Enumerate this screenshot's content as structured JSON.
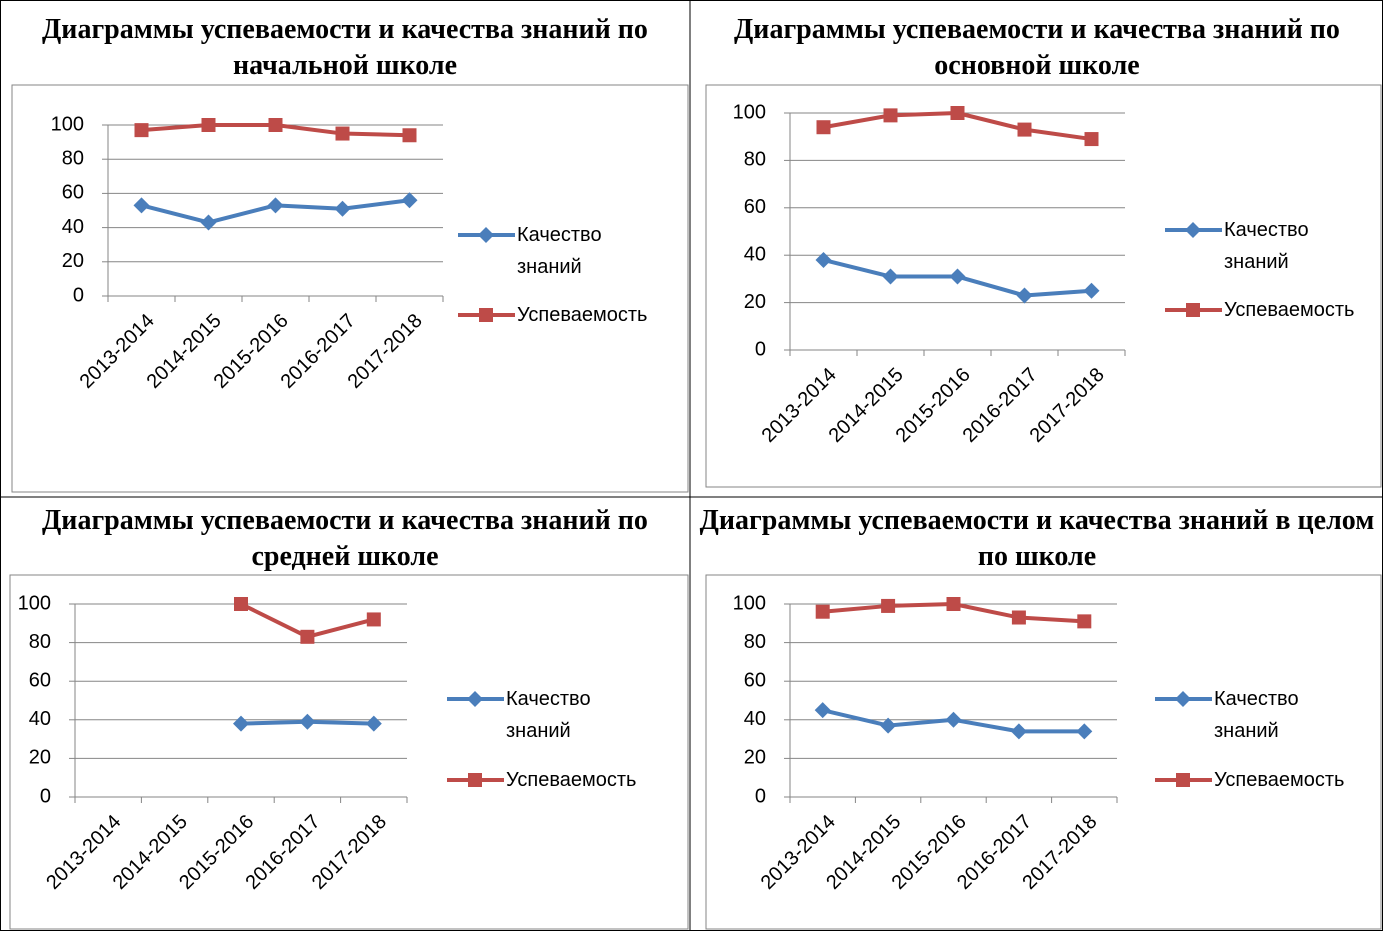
{
  "chart_data": [
    {
      "type": "line",
      "title": "Диаграммы успеваемости и качества знаний по начальной школе",
      "categories": [
        "2013-2014",
        "2014-2015",
        "2015-2016",
        "2016-2017",
        "2017-2018"
      ],
      "series": [
        {
          "name": "Качество знаний",
          "color": "#4a7ebb",
          "marker": "diamond",
          "values": [
            53,
            43,
            53,
            51,
            56
          ]
        },
        {
          "name": "Успеваемость",
          "color": "#be4b48",
          "marker": "square",
          "values": [
            97,
            100,
            100,
            95,
            94
          ]
        }
      ],
      "ylim": [
        0,
        100
      ],
      "yticks": [
        0,
        20,
        40,
        60,
        80,
        100
      ],
      "grid": true,
      "legend": "right"
    },
    {
      "type": "line",
      "title": "Диаграммы успеваемости и качества знаний по основной школе",
      "categories": [
        "2013-2014",
        "2014-2015",
        "2015-2016",
        "2016-2017",
        "2017-2018"
      ],
      "series": [
        {
          "name": "Качество знаний",
          "color": "#4a7ebb",
          "marker": "diamond",
          "values": [
            38,
            31,
            31,
            23,
            25
          ]
        },
        {
          "name": "Успеваемость",
          "color": "#be4b48",
          "marker": "square",
          "values": [
            94,
            99,
            100,
            93,
            89
          ]
        }
      ],
      "ylim": [
        0,
        100
      ],
      "yticks": [
        0,
        20,
        40,
        60,
        80,
        100
      ],
      "grid": true,
      "legend": "right"
    },
    {
      "type": "line",
      "title": "Диаграммы успеваемости и качества знаний по средней школе",
      "categories": [
        "2013-2014",
        "2014-2015",
        "2015-2016",
        "2016-2017",
        "2017-2018"
      ],
      "series": [
        {
          "name": "Качество знаний",
          "color": "#4a7ebb",
          "marker": "diamond",
          "values": [
            null,
            null,
            38,
            39,
            38
          ]
        },
        {
          "name": "Успеваемость",
          "color": "#be4b48",
          "marker": "square",
          "values": [
            null,
            null,
            100,
            83,
            92
          ]
        }
      ],
      "ylim": [
        0,
        100
      ],
      "yticks": [
        0,
        20,
        40,
        60,
        80,
        100
      ],
      "grid": true,
      "legend": "right"
    },
    {
      "type": "line",
      "title": "Диаграммы успеваемости и качества знаний в целом по школе",
      "categories": [
        "2013-2014",
        "2014-2015",
        "2015-2016",
        "2016-2017",
        "2017-2018"
      ],
      "series": [
        {
          "name": "Качество знаний",
          "color": "#4a7ebb",
          "marker": "diamond",
          "values": [
            45,
            37,
            40,
            34,
            34
          ]
        },
        {
          "name": "Успеваемость",
          "color": "#be4b48",
          "marker": "square",
          "values": [
            96,
            99,
            100,
            93,
            91
          ]
        }
      ],
      "ylim": [
        0,
        100
      ],
      "yticks": [
        0,
        20,
        40,
        60,
        80,
        100
      ],
      "grid": true,
      "legend": "right"
    }
  ]
}
